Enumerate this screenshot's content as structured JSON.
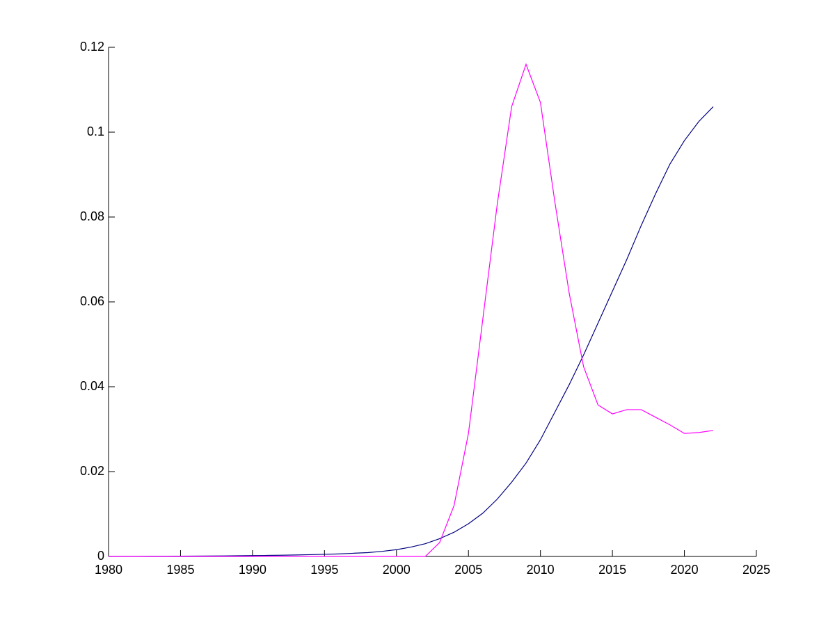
{
  "chart_data": {
    "type": "line",
    "x": [
      1980,
      1981,
      1982,
      1983,
      1984,
      1985,
      1986,
      1987,
      1988,
      1989,
      1990,
      1991,
      1992,
      1993,
      1994,
      1995,
      1996,
      1997,
      1998,
      1999,
      2000,
      2001,
      2002,
      2003,
      2004,
      2005,
      2006,
      2007,
      2008,
      2009,
      2010,
      2011,
      2012,
      2013,
      2014,
      2015,
      2016,
      2017,
      2018,
      2019,
      2020,
      2021,
      2022
    ],
    "series": [
      {
        "color": "#000080",
        "values": [
          0.0,
          2e-05,
          3e-05,
          4e-05,
          5e-05,
          7e-05,
          9e-05,
          0.00011,
          0.00013,
          0.00016,
          0.0002,
          0.00024,
          0.00029,
          0.00035,
          0.00042,
          0.0005,
          0.0006,
          0.00075,
          0.0009,
          0.0012,
          0.0016,
          0.0022,
          0.003,
          0.0042,
          0.0057,
          0.0077,
          0.0102,
          0.0135,
          0.0175,
          0.022,
          0.0275,
          0.034,
          0.0405,
          0.0475,
          0.055,
          0.0625,
          0.07,
          0.078,
          0.0855,
          0.0925,
          0.098,
          0.1025,
          0.106
        ]
      },
      {
        "color": "#ff00ff",
        "values": [
          0,
          0,
          0,
          0,
          0,
          0,
          0,
          0,
          0,
          0,
          0,
          0,
          0,
          0,
          0,
          0,
          0,
          0,
          0,
          0,
          0,
          0,
          0,
          0.0033,
          0.012,
          0.029,
          0.056,
          0.083,
          0.106,
          0.116,
          0.107,
          0.0836,
          0.062,
          0.0447,
          0.0357,
          0.0336,
          0.0346,
          0.0346,
          0.0328,
          0.031,
          0.029,
          0.0292,
          0.0297
        ]
      }
    ],
    "xlim": [
      1980,
      2025
    ],
    "xticks": [
      1980,
      1985,
      1990,
      1995,
      2000,
      2005,
      2010,
      2015,
      2020,
      2025
    ],
    "ylim": [
      0,
      0.12
    ],
    "yticks": [
      0,
      0.02,
      0.04,
      0.06,
      0.08,
      0.1,
      0.12
    ]
  }
}
